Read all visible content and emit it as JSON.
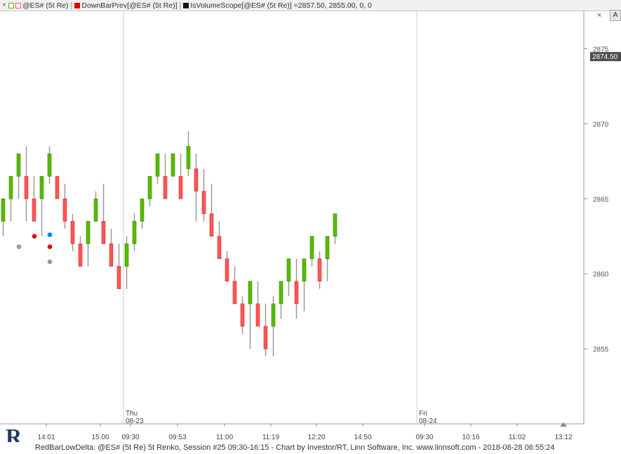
{
  "toolbar": {
    "close_glyph": "×",
    "legend_1": "@ES# (5t Re)",
    "legend_2": "DownBarPrev[@ES# (5t Re)]",
    "legend_3": "IsVolumeScope[@ES# (5t Re)]",
    "legend_3_value": "=2857.50, 2855.00, 0, 0",
    "corner_button": "A",
    "close_button": "×"
  },
  "footer": {
    "text": "RedBarLowDelta: @ES# (5t Re) 5t Renko, Session #25 09:30-16:15 - Chart by Investor/RT, Linn Software, Inc. www.linnsoft.com - 2018-08-28 06:55:24"
  },
  "colors": {
    "up": "#55bb00",
    "down": "#ff5555",
    "dot_red": "#e00000",
    "dot_gray": "#999999",
    "dot_blue": "#0a84e8",
    "last_price_bg": "#4d4d4d"
  },
  "chart_data": {
    "type": "candlestick",
    "y_ticks": [
      "2855",
      "2860",
      "2865",
      "2870",
      "2875"
    ],
    "ylim": [
      2850,
      2877.5
    ],
    "last_price": "2874.50",
    "x_labels": [
      "14:01",
      "15:00",
      "09:30",
      "09:53",
      "11:00",
      "11:19",
      "12:20",
      "14:50",
      "09:30",
      "10:16",
      "11:02",
      "13:12"
    ],
    "sessions": [
      {
        "day": "Thu",
        "date": "08-23"
      },
      {
        "day": "Fri",
        "date": "08-24"
      }
    ],
    "bricks": [
      {
        "d": "up",
        "o": 2863.5,
        "c": 2865,
        "h": 2865,
        "l": 2862.5
      },
      {
        "d": "up",
        "o": 2865,
        "c": 2866.5,
        "h": 2866.5,
        "l": 2863.5
      },
      {
        "d": "up",
        "o": 2866.5,
        "c": 2868,
        "h": 2868,
        "l": 2865
      },
      {
        "d": "down",
        "o": 2866.5,
        "c": 2865,
        "h": 2868.5,
        "l": 2863.5
      },
      {
        "d": "down",
        "o": 2865,
        "c": 2863.5,
        "h": 2866.5,
        "l": 2863.5
      },
      {
        "d": "up",
        "o": 2865,
        "c": 2866.5,
        "h": 2866.5,
        "l": 2862.5
      },
      {
        "d": "up",
        "o": 2866.5,
        "c": 2868,
        "h": 2868.5,
        "l": 2866
      },
      {
        "d": "down",
        "o": 2866.5,
        "c": 2865,
        "h": 2866.5,
        "l": 2865
      },
      {
        "d": "down",
        "o": 2865,
        "c": 2863.5,
        "h": 2866,
        "l": 2863
      },
      {
        "d": "down",
        "o": 2863.5,
        "c": 2862,
        "h": 2864,
        "l": 2861.5
      },
      {
        "d": "down",
        "o": 2862,
        "c": 2860.5,
        "h": 2862.5,
        "l": 2860.5
      },
      {
        "d": "up",
        "o": 2862,
        "c": 2863.5,
        "h": 2863.5,
        "l": 2860.5
      },
      {
        "d": "up",
        "o": 2863.5,
        "c": 2865,
        "h": 2865.5,
        "l": 2863.5
      },
      {
        "d": "down",
        "o": 2863.5,
        "c": 2862,
        "h": 2866,
        "l": 2862
      },
      {
        "d": "down",
        "o": 2862,
        "c": 2860.5,
        "h": 2863,
        "l": 2860.5
      },
      {
        "d": "down",
        "o": 2860.5,
        "c": 2859,
        "h": 2862,
        "l": 2859
      },
      {
        "d": "up",
        "o": 2860.5,
        "c": 2862,
        "h": 2862.5,
        "l": 2859
      },
      {
        "d": "up",
        "o": 2862,
        "c": 2863.5,
        "h": 2864,
        "l": 2861.5
      },
      {
        "d": "up",
        "o": 2863.5,
        "c": 2865,
        "h": 2865,
        "l": 2863
      },
      {
        "d": "up",
        "o": 2865,
        "c": 2866.5,
        "h": 2866.5,
        "l": 2864.5
      },
      {
        "d": "up",
        "o": 2866.5,
        "c": 2868,
        "h": 2868,
        "l": 2866
      },
      {
        "d": "down",
        "o": 2866.5,
        "c": 2865,
        "h": 2868,
        "l": 2865
      },
      {
        "d": "up",
        "o": 2866.5,
        "c": 2868,
        "h": 2868,
        "l": 2866.5
      },
      {
        "d": "down",
        "o": 2866.5,
        "c": 2865,
        "h": 2868,
        "l": 2865
      },
      {
        "d": "up",
        "o": 2867,
        "c": 2868.5,
        "h": 2869.5,
        "l": 2866.5
      },
      {
        "d": "down",
        "o": 2867,
        "c": 2865.5,
        "h": 2868,
        "l": 2863.5
      },
      {
        "d": "down",
        "o": 2865.5,
        "c": 2864,
        "h": 2867,
        "l": 2863.5
      },
      {
        "d": "down",
        "o": 2864,
        "c": 2862.5,
        "h": 2866,
        "l": 2862.5
      },
      {
        "d": "down",
        "o": 2862.5,
        "c": 2861,
        "h": 2863.5,
        "l": 2861
      },
      {
        "d": "down",
        "o": 2861,
        "c": 2859.5,
        "h": 2861.5,
        "l": 2859.5
      },
      {
        "d": "down",
        "o": 2859.5,
        "c": 2858,
        "h": 2860.5,
        "l": 2858
      },
      {
        "d": "down",
        "o": 2858,
        "c": 2856.5,
        "h": 2858.5,
        "l": 2856
      },
      {
        "d": "up",
        "o": 2858,
        "c": 2859.5,
        "h": 2859.5,
        "l": 2855
      },
      {
        "d": "down",
        "o": 2858,
        "c": 2856.5,
        "h": 2859.5,
        "l": 2856.5
      },
      {
        "d": "down",
        "o": 2856.5,
        "c": 2855,
        "h": 2858,
        "l": 2854.5
      },
      {
        "d": "up",
        "o": 2856.5,
        "c": 2858,
        "h": 2858.5,
        "l": 2854.5
      },
      {
        "d": "up",
        "o": 2858,
        "c": 2859.5,
        "h": 2859.5,
        "l": 2857
      },
      {
        "d": "up",
        "o": 2859.5,
        "c": 2861,
        "h": 2861,
        "l": 2858.5
      },
      {
        "d": "down",
        "o": 2859.5,
        "c": 2858,
        "h": 2861,
        "l": 2857
      },
      {
        "d": "up",
        "o": 2859.5,
        "c": 2861,
        "h": 2861,
        "l": 2857.5
      },
      {
        "d": "up",
        "o": 2861,
        "c": 2862.5,
        "h": 2862.5,
        "l": 2860.5
      },
      {
        "d": "down",
        "o": 2861,
        "c": 2859.5,
        "h": 2861.5,
        "l": 2859
      },
      {
        "d": "up",
        "o": 2861,
        "c": 2862.5,
        "h": 2862.5,
        "l": 2859.5
      },
      {
        "d": "up",
        "o": 2862.5,
        "c": 2864,
        "h": 2864,
        "l": 2862
      }
    ],
    "dots": [
      {
        "k": "gray",
        "i": 0,
        "v": 2861.8
      },
      {
        "k": "red",
        "i": 1,
        "v": 2862.5
      },
      {
        "k": "blue",
        "i": 2,
        "v": 2862.6
      },
      {
        "k": "red",
        "i": 2,
        "v": 2861.8
      },
      {
        "k": "gray",
        "i": 2,
        "v": 2860.8
      }
    ]
  }
}
